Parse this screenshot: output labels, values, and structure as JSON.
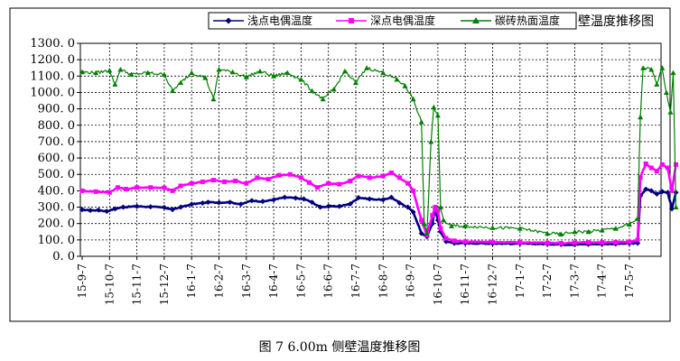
{
  "chart_data": {
    "type": "line",
    "title": "",
    "caption": "图 7   6.00m 侧壁温度推移图",
    "xlabel": "",
    "ylabel": "",
    "ylim": [
      0,
      1300
    ],
    "y_ticks": [
      "1300. 0",
      "1200. 0",
      "1100. 0",
      "1000. 0",
      "900. 0",
      "800. 0",
      "700. 0",
      "600. 0",
      "500. 0",
      "400. 0",
      "300. 0",
      "200. 0",
      "100. 0",
      "0. 0"
    ],
    "x_ticks": [
      "15-9-7",
      "15-10-7",
      "15-11-7",
      "15-12-7",
      "16-1-7",
      "16-2-7",
      "16-3-7",
      "16-4-7",
      "16-5-7",
      "16-6-7",
      "16-7-7",
      "16-8-7",
      "16-9-7",
      "16-10-7",
      "16-11-7",
      "16-12-7",
      "17-1-7",
      "17-2-7",
      "17-3-7",
      "17-4-7",
      "17-5-7"
    ],
    "x_range": [
      0,
      21
    ],
    "grid": true,
    "legend_position": "top",
    "legend_overflow_text": "壁温度推移图",
    "series": [
      {
        "name": "浅点电偶温度",
        "color": "#000080",
        "marker": "diamond",
        "points": [
          [
            0,
            285
          ],
          [
            0.3,
            280
          ],
          [
            0.6,
            282
          ],
          [
            0.9,
            275
          ],
          [
            1.2,
            290
          ],
          [
            1.5,
            300
          ],
          [
            2.0,
            305
          ],
          [
            2.5,
            302
          ],
          [
            3.0,
            298
          ],
          [
            3.3,
            285
          ],
          [
            3.6,
            300
          ],
          [
            4.0,
            318
          ],
          [
            4.4,
            325
          ],
          [
            4.6,
            330
          ],
          [
            5.0,
            328
          ],
          [
            5.4,
            330
          ],
          [
            5.8,
            318
          ],
          [
            6.2,
            340
          ],
          [
            6.6,
            335
          ],
          [
            7.0,
            345
          ],
          [
            7.4,
            360
          ],
          [
            7.8,
            355
          ],
          [
            8.1,
            350
          ],
          [
            8.4,
            330
          ],
          [
            8.7,
            300
          ],
          [
            9.0,
            305
          ],
          [
            9.4,
            305
          ],
          [
            9.8,
            320
          ],
          [
            10.1,
            358
          ],
          [
            10.5,
            350
          ],
          [
            11.0,
            345
          ],
          [
            11.3,
            360
          ],
          [
            11.6,
            325
          ],
          [
            11.9,
            300
          ],
          [
            12.1,
            270
          ],
          [
            12.4,
            140
          ],
          [
            12.6,
            120
          ],
          [
            12.8,
            200
          ],
          [
            12.9,
            290
          ],
          [
            13.0,
            220
          ],
          [
            13.1,
            150
          ],
          [
            13.3,
            90
          ],
          [
            13.6,
            80
          ],
          [
            14.0,
            80
          ],
          [
            15.0,
            78
          ],
          [
            16.0,
            77
          ],
          [
            17.0,
            75
          ],
          [
            17.5,
            72
          ],
          [
            18.0,
            72
          ],
          [
            18.5,
            74
          ],
          [
            19.0,
            75
          ],
          [
            19.5,
            76
          ],
          [
            20.0,
            78
          ],
          [
            20.3,
            80
          ],
          [
            20.4,
            370
          ],
          [
            20.6,
            410
          ],
          [
            20.8,
            400
          ],
          [
            21.0,
            380
          ],
          [
            21.2,
            395
          ],
          [
            21.4,
            390
          ],
          [
            21.55,
            290
          ],
          [
            21.7,
            390
          ]
        ]
      },
      {
        "name": "深点电偶温度",
        "color": "#ff00ff",
        "marker": "square",
        "points": [
          [
            0,
            400
          ],
          [
            0.5,
            395
          ],
          [
            1.0,
            390
          ],
          [
            1.3,
            420
          ],
          [
            1.6,
            410
          ],
          [
            2.0,
            420
          ],
          [
            2.5,
            420
          ],
          [
            3.0,
            418
          ],
          [
            3.3,
            400
          ],
          [
            3.6,
            430
          ],
          [
            4.0,
            445
          ],
          [
            4.4,
            455
          ],
          [
            4.8,
            465
          ],
          [
            5.2,
            455
          ],
          [
            5.6,
            460
          ],
          [
            6.0,
            445
          ],
          [
            6.4,
            480
          ],
          [
            6.8,
            470
          ],
          [
            7.2,
            495
          ],
          [
            7.6,
            500
          ],
          [
            8.0,
            480
          ],
          [
            8.3,
            450
          ],
          [
            8.6,
            420
          ],
          [
            9.0,
            445
          ],
          [
            9.4,
            440
          ],
          [
            9.8,
            460
          ],
          [
            10.1,
            490
          ],
          [
            10.5,
            480
          ],
          [
            11.0,
            490
          ],
          [
            11.3,
            510
          ],
          [
            11.6,
            480
          ],
          [
            11.9,
            445
          ],
          [
            12.1,
            400
          ],
          [
            12.4,
            220
          ],
          [
            12.6,
            130
          ],
          [
            12.8,
            250
          ],
          [
            12.9,
            300
          ],
          [
            13.0,
            280
          ],
          [
            13.1,
            170
          ],
          [
            13.3,
            110
          ],
          [
            13.6,
            95
          ],
          [
            14.0,
            90
          ],
          [
            15.0,
            88
          ],
          [
            16.0,
            85
          ],
          [
            17.0,
            82
          ],
          [
            17.5,
            80
          ],
          [
            18.0,
            83
          ],
          [
            18.5,
            85
          ],
          [
            19.0,
            85
          ],
          [
            19.5,
            86
          ],
          [
            20.0,
            88
          ],
          [
            20.3,
            100
          ],
          [
            20.4,
            480
          ],
          [
            20.6,
            565
          ],
          [
            20.8,
            540
          ],
          [
            21.0,
            520
          ],
          [
            21.2,
            560
          ],
          [
            21.4,
            540
          ],
          [
            21.55,
            400
          ],
          [
            21.7,
            560
          ]
        ]
      },
      {
        "name": "碳砖热面温度",
        "color": "#008000",
        "marker": "triangle",
        "points": [
          [
            0,
            1125
          ],
          [
            0.5,
            1120
          ],
          [
            1.0,
            1135
          ],
          [
            1.2,
            1050
          ],
          [
            1.4,
            1140
          ],
          [
            1.8,
            1110
          ],
          [
            2.4,
            1120
          ],
          [
            3.0,
            1110
          ],
          [
            3.3,
            1010
          ],
          [
            3.6,
            1060
          ],
          [
            4.0,
            1120
          ],
          [
            4.5,
            1090
          ],
          [
            4.8,
            960
          ],
          [
            5.0,
            1140
          ],
          [
            5.5,
            1125
          ],
          [
            6.0,
            1095
          ],
          [
            6.5,
            1130
          ],
          [
            7.0,
            1100
          ],
          [
            7.5,
            1120
          ],
          [
            8.0,
            1080
          ],
          [
            8.4,
            1010
          ],
          [
            8.8,
            960
          ],
          [
            9.2,
            1020
          ],
          [
            9.6,
            1130
          ],
          [
            10.0,
            1060
          ],
          [
            10.4,
            1150
          ],
          [
            11.0,
            1120
          ],
          [
            11.5,
            1080
          ],
          [
            11.8,
            1040
          ],
          [
            12.1,
            960
          ],
          [
            12.4,
            820
          ],
          [
            12.5,
            200
          ],
          [
            12.6,
            140
          ],
          [
            12.75,
            700
          ],
          [
            12.85,
            910
          ],
          [
            13.0,
            860
          ],
          [
            13.1,
            300
          ],
          [
            13.2,
            220
          ],
          [
            13.5,
            185
          ],
          [
            14.0,
            185
          ],
          [
            15.0,
            175
          ],
          [
            16.0,
            170
          ],
          [
            17.0,
            140
          ],
          [
            17.5,
            135
          ],
          [
            18.0,
            150
          ],
          [
            18.5,
            150
          ],
          [
            19.0,
            160
          ],
          [
            19.5,
            170
          ],
          [
            20.0,
            195
          ],
          [
            20.3,
            230
          ],
          [
            20.4,
            850
          ],
          [
            20.5,
            1150
          ],
          [
            20.8,
            1140
          ],
          [
            21.0,
            1050
          ],
          [
            21.2,
            1150
          ],
          [
            21.35,
            1000
          ],
          [
            21.5,
            880
          ],
          [
            21.6,
            1120
          ],
          [
            21.7,
            300
          ]
        ]
      }
    ]
  }
}
